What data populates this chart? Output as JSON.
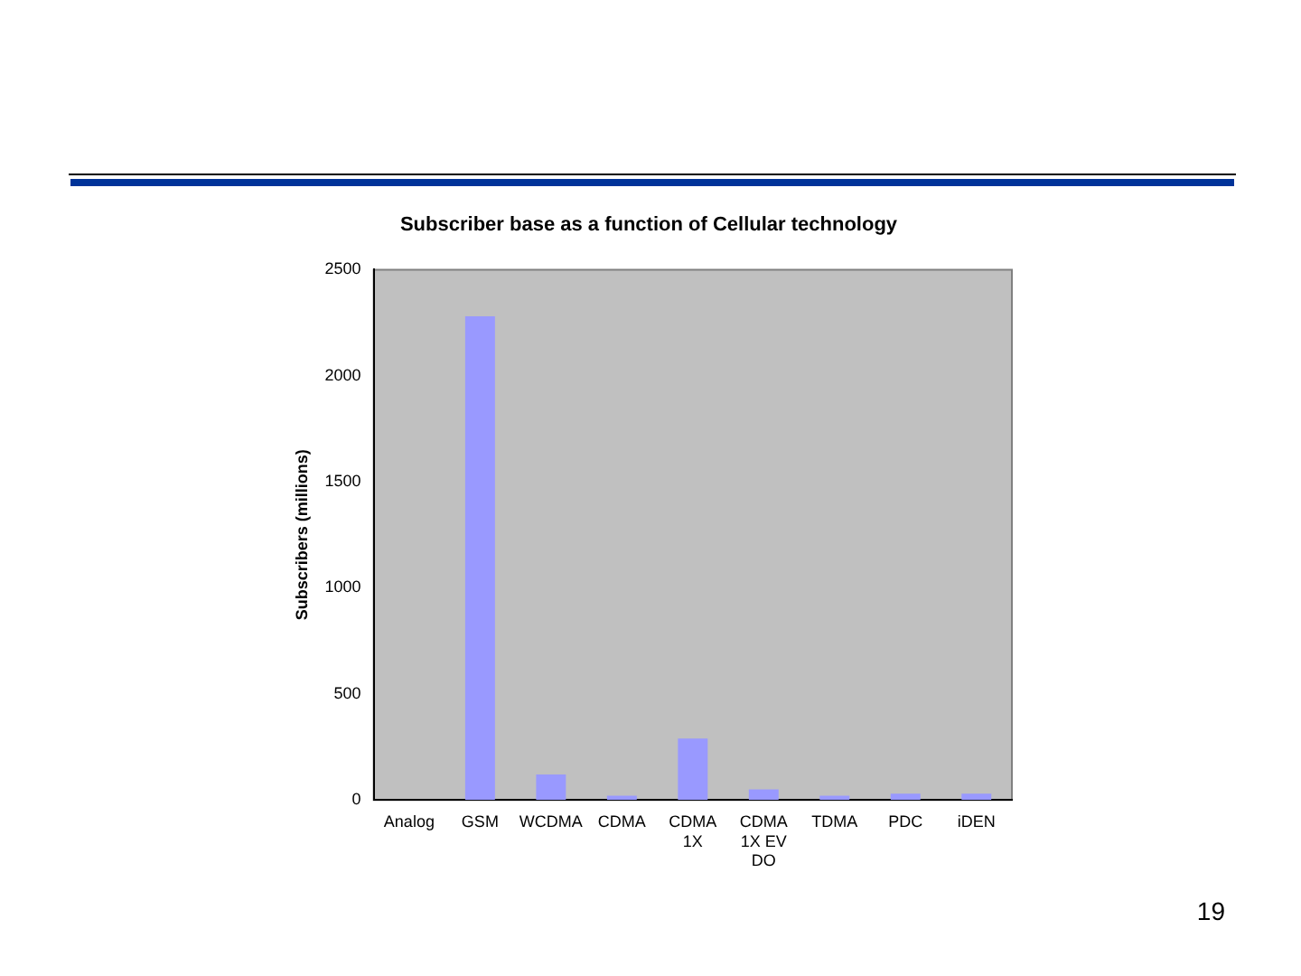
{
  "chart_data": {
    "type": "bar",
    "title": "Subscriber base as a function of Cellular technology",
    "ylabel": "Subscribers (millions)",
    "categories": [
      "Analog",
      "GSM",
      "WCDMA",
      "CDMA",
      "CDMA 1X",
      "CDMA 1X EV DO",
      "TDMA",
      "PDC",
      "iDEN"
    ],
    "values": [
      0,
      2280,
      120,
      20,
      290,
      50,
      20,
      30,
      30
    ],
    "color": "#9999ff",
    "ylim": [
      0,
      2500
    ],
    "yticks": [
      0,
      500,
      1000,
      1500,
      2000,
      2500
    ],
    "grid": false,
    "legend": false,
    "annotations": [
      "19"
    ]
  }
}
